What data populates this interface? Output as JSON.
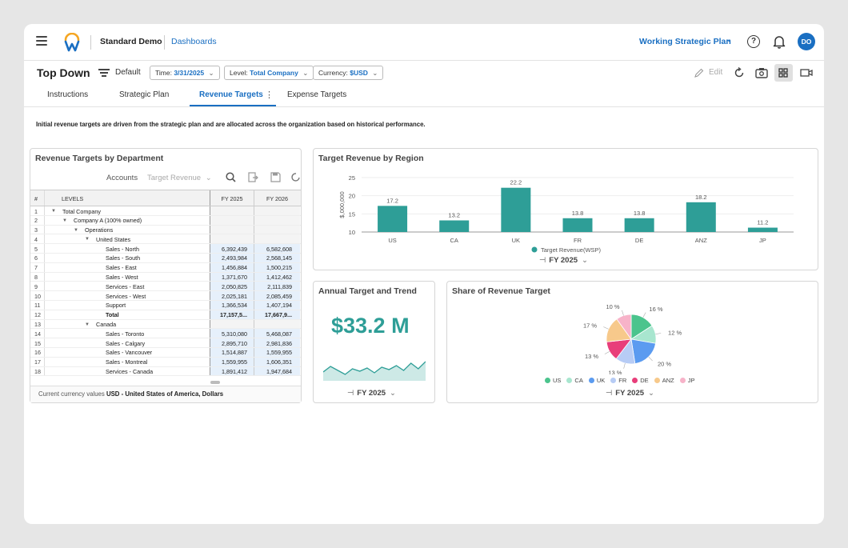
{
  "nav": {
    "app_name": "Standard Demo",
    "breadcrumb": "Dashboards",
    "plan_selector": "Working Strategic Plan",
    "help_glyph": "?",
    "avatar_initials": "DO"
  },
  "toolbar": {
    "title": "Top Down",
    "view_label": "Default",
    "time_label": "Time:",
    "time_value": "3/31/2025",
    "level_label": "Level:",
    "level_value": "Total Company",
    "currency_label": "Currency:",
    "currency_value": "$USD",
    "edit_label": "Edit"
  },
  "tabs": [
    {
      "label": "Instructions"
    },
    {
      "label": "Strategic Plan"
    },
    {
      "label": "Revenue Targets"
    },
    {
      "label": "Expense Targets"
    }
  ],
  "active_tab": "Revenue Targets",
  "intro_text": "Initial revenue targets are driven from the strategic plan and are allocated across the organization based on historical performance.",
  "grid_card": {
    "title": "Revenue Targets by Department",
    "accounts_label": "Accounts",
    "accounts_value": "Target Revenue",
    "headers": {
      "num": "#",
      "levels": "LEVELS",
      "col1": "FY 2025",
      "col2": "FY 2026"
    },
    "rows": [
      {
        "n": "1",
        "label": "Total Company",
        "indent": 0,
        "tree": true,
        "v1": "",
        "v2": ""
      },
      {
        "n": "2",
        "label": "Company A (100% owned)",
        "indent": 1,
        "tree": true,
        "v1": "",
        "v2": ""
      },
      {
        "n": "3",
        "label": "Operations",
        "indent": 2,
        "tree": true,
        "v1": "",
        "v2": ""
      },
      {
        "n": "4",
        "label": "United States",
        "indent": 3,
        "tree": true,
        "v1": "",
        "v2": ""
      },
      {
        "n": "5",
        "label": "Sales - North",
        "indent": 4,
        "tree": false,
        "v1": "6,392,439",
        "v2": "6,582,608"
      },
      {
        "n": "6",
        "label": "Sales - South",
        "indent": 4,
        "tree": false,
        "v1": "2,493,984",
        "v2": "2,568,145"
      },
      {
        "n": "7",
        "label": "Sales - East",
        "indent": 4,
        "tree": false,
        "v1": "1,456,884",
        "v2": "1,500,215"
      },
      {
        "n": "8",
        "label": "Sales - West",
        "indent": 4,
        "tree": false,
        "v1": "1,371,670",
        "v2": "1,412,462"
      },
      {
        "n": "9",
        "label": "Services - East",
        "indent": 4,
        "tree": false,
        "v1": "2,050,825",
        "v2": "2,111,839"
      },
      {
        "n": "10",
        "label": "Services - West",
        "indent": 4,
        "tree": false,
        "v1": "2,025,181",
        "v2": "2,085,459"
      },
      {
        "n": "11",
        "label": "Support",
        "indent": 4,
        "tree": false,
        "v1": "1,366,534",
        "v2": "1,407,194"
      },
      {
        "n": "12",
        "label": "Total",
        "indent": 4,
        "tree": false,
        "v1": "17,157,5...",
        "v2": "17,667,9...",
        "bold": true
      },
      {
        "n": "13",
        "label": "Canada",
        "indent": 3,
        "tree": true,
        "v1": "",
        "v2": ""
      },
      {
        "n": "14",
        "label": "Sales - Toronto",
        "indent": 4,
        "tree": false,
        "v1": "5,310,080",
        "v2": "5,468,087"
      },
      {
        "n": "15",
        "label": "Sales - Calgary",
        "indent": 4,
        "tree": false,
        "v1": "2,895,710",
        "v2": "2,981,836"
      },
      {
        "n": "16",
        "label": "Sales - Vancouver",
        "indent": 4,
        "tree": false,
        "v1": "1,514,887",
        "v2": "1,559,955"
      },
      {
        "n": "17",
        "label": "Sales - Montreal",
        "indent": 4,
        "tree": false,
        "v1": "1,559,955",
        "v2": "1,606,351"
      },
      {
        "n": "18",
        "label": "Services - Canada",
        "indent": 4,
        "tree": false,
        "v1": "1,891,412",
        "v2": "1,947,684"
      }
    ],
    "footer_label": "Current currency values",
    "footer_value": "USD - United States of America, Dollars"
  },
  "region_card": {
    "title": "Target Revenue by Region",
    "period": "FY 2025"
  },
  "kpi_card": {
    "title": "Annual Target and Trend",
    "value": "$33.2 M",
    "period": "FY 2025",
    "trend": [
      0.35,
      0.7,
      0.45,
      0.2,
      0.55,
      0.4,
      0.6,
      0.3,
      0.65,
      0.5,
      0.75,
      0.45,
      0.9,
      0.55,
      1.0
    ]
  },
  "share_card": {
    "title": "Share of Revenue Target",
    "period": "FY 2025"
  },
  "chart_data": [
    {
      "type": "bar",
      "title": "Target Revenue by Region",
      "ylabel": "$,000,000",
      "categories": [
        "US",
        "CA",
        "UK",
        "FR",
        "DE",
        "ANZ",
        "JP"
      ],
      "series": [
        {
          "name": "Target Revenue(WSP)",
          "values": [
            17.2,
            13.2,
            22.2,
            13.8,
            13.8,
            18.2,
            11.2
          ],
          "color": "#2e9e97"
        }
      ],
      "yticks": [
        10,
        15,
        20,
        25
      ],
      "ylim": [
        10,
        25
      ],
      "legend": "bottom"
    },
    {
      "type": "pie",
      "title": "Share of Revenue Target",
      "categories": [
        "US",
        "CA",
        "UK",
        "FR",
        "DE",
        "ANZ",
        "JP"
      ],
      "values": [
        16,
        12,
        20,
        13,
        13,
        17,
        10
      ],
      "labels": [
        "16 %",
        "12 %",
        "20 %",
        "13 %",
        "13 %",
        "17 %",
        "10 %"
      ],
      "colors": [
        "#4bc48d",
        "#a8e6cf",
        "#5b9bf0",
        "#b7ccf5",
        "#e83e7a",
        "#f7c98b",
        "#f7b3c9"
      ],
      "legend": "bottom"
    }
  ]
}
